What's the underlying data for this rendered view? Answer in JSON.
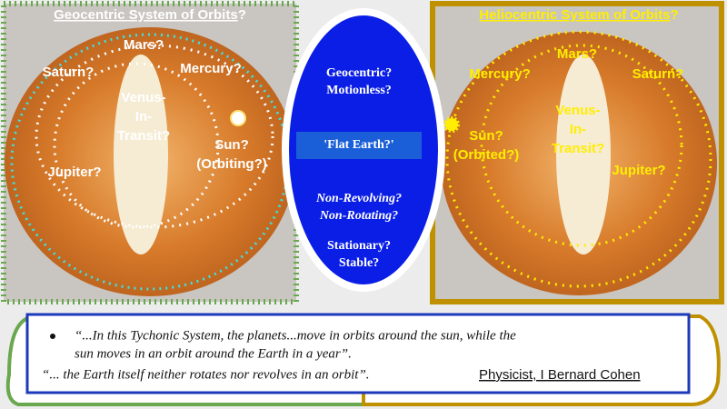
{
  "left": {
    "title": "Geocentric System of Orbits",
    "title_mark": "?",
    "labels": [
      [
        "Mars?"
      ],
      [
        "Saturn?"
      ],
      [
        "Mercury?"
      ],
      [
        "Venus-",
        "In-",
        "Transit?"
      ],
      [
        "Sun?",
        "(Orbiting?)"
      ],
      [
        "Jupiter?"
      ]
    ]
  },
  "center": {
    "top": [
      "Geocentric?",
      "Motionless?"
    ],
    "middle": "'Flat Earth?'",
    "lower": [
      "Non-Revolving?",
      "Non-Rotating?"
    ],
    "bottom": [
      "Stationary?",
      "Stable?"
    ]
  },
  "right": {
    "title": "Heliocentric System of Orbits",
    "title_mark": "?",
    "labels": [
      [
        "Mars?"
      ],
      [
        "Mercury?"
      ],
      [
        "Saturn?"
      ],
      [
        "Venus-",
        "In-",
        "Transit?"
      ],
      [
        "Sun?",
        "(Orbited?)"
      ],
      [
        "Jupiter?"
      ]
    ]
  },
  "quote": {
    "bullet": "“...In this Tychonic System, the planets...move in orbits around the sun, while the",
    "bullet_cont": "sun moves in an orbit around the Earth in a year”.",
    "line2": "“... the Earth itself neither rotates nor revolves in an orbit”.",
    "attribution": "Physicist, I Bernard Cohen"
  }
}
